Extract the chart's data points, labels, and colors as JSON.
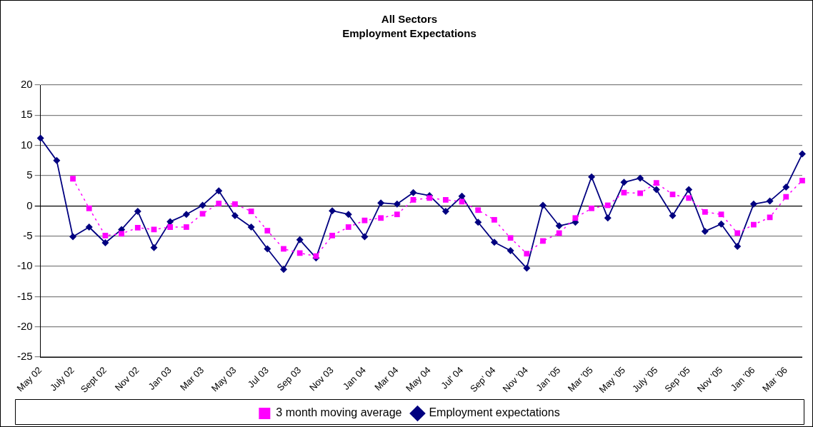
{
  "chart_data": {
    "type": "line",
    "title": "All Sectors",
    "subtitle": "Employment Expectations",
    "categories": [
      "May 02",
      null,
      "July 02",
      null,
      "Sept 02",
      null,
      "Nov 02",
      null,
      "Jan 03",
      null,
      "Mar 03",
      null,
      "May 03",
      null,
      "Jul 03",
      null,
      "Sep 03",
      null,
      "Nov 03",
      null,
      "Jan 04",
      null,
      "Mar 04",
      null,
      "May 04",
      null,
      "Jul' 04",
      null,
      "Sep' 04",
      null,
      "Nov '04",
      null,
      "Jan '05",
      null,
      "Mar '05",
      null,
      "May '05",
      null,
      "July '05",
      null,
      "Sep '05",
      null,
      "Nov '05",
      null,
      "Jan '06",
      null,
      "Mar '06",
      null
    ],
    "series": [
      {
        "name": "Employment expectations",
        "color": "#000080",
        "marker": "diamond",
        "line_style": "solid",
        "values": [
          11.2,
          7.5,
          -5.1,
          -3.5,
          -6.1,
          -3.9,
          -0.9,
          -6.9,
          -2.6,
          -1.4,
          0.1,
          2.5,
          -1.6,
          -3.5,
          -7.1,
          -10.5,
          -5.6,
          -8.6,
          -0.8,
          -1.4,
          -5.1,
          0.5,
          0.3,
          2.2,
          1.7,
          -0.9,
          1.6,
          -2.7,
          -6.0,
          -7.4,
          -10.3,
          0.1,
          -3.3,
          -2.7,
          4.8,
          -2.0,
          3.9,
          4.6,
          2.7,
          -1.6,
          2.7,
          -4.2,
          -3.0,
          -6.7,
          0.3,
          0.8,
          3.1,
          8.6
        ]
      },
      {
        "name": "3 month moving average",
        "color": "#ff00ff",
        "marker": "square",
        "line_style": "dotted",
        "values": [
          null,
          null,
          4.5,
          -0.4,
          -4.9,
          -4.6,
          -3.6,
          -3.9,
          -3.5,
          -3.5,
          -1.3,
          0.4,
          0.3,
          -0.9,
          -4.1,
          -7.1,
          -7.8,
          -8.3,
          -4.9,
          -3.5,
          -2.4,
          -2.0,
          -1.4,
          1.0,
          1.3,
          1.0,
          0.7,
          -0.7,
          -2.3,
          -5.3,
          -7.9,
          -5.8,
          -4.5,
          -2.0,
          -0.4,
          0.1,
          2.2,
          2.1,
          3.8,
          1.9,
          1.3,
          -1.0,
          -1.4,
          -4.5,
          -3.1,
          -1.9,
          1.5,
          4.2
        ]
      }
    ],
    "ylim": [
      -25,
      20
    ],
    "yticks": [
      -25,
      -20,
      -15,
      -10,
      -5,
      0,
      5,
      10,
      15,
      20
    ],
    "grid": "y",
    "legend": "bottom"
  }
}
